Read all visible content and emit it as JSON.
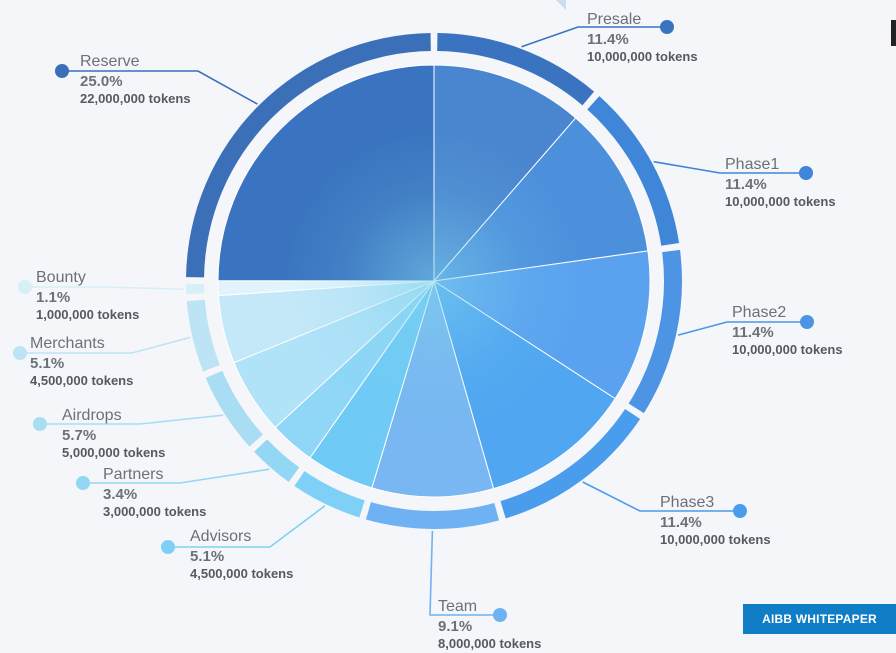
{
  "chart_data": {
    "type": "pie",
    "title": "",
    "slices": [
      {
        "name": "Presale",
        "percent": "11.4%",
        "percent_value": 11.4,
        "tokens": "10,000,000 tokens",
        "token_value": 10000000,
        "color": "#4a86cf",
        "ring_color": "#3a74c0"
      },
      {
        "name": "Phase1",
        "percent": "11.4%",
        "percent_value": 11.4,
        "tokens": "10,000,000 tokens",
        "token_value": 10000000,
        "color": "#4c90dc",
        "ring_color": "#3f86d8"
      },
      {
        "name": "Phase2",
        "percent": "11.4%",
        "percent_value": 11.4,
        "tokens": "10,000,000 tokens",
        "token_value": 10000000,
        "color": "#5aa2ef",
        "ring_color": "#4d95e4"
      },
      {
        "name": "Phase3",
        "percent": "11.4%",
        "percent_value": 11.4,
        "tokens": "10,000,000 tokens",
        "token_value": 10000000,
        "color": "#50a6f0",
        "ring_color": "#4a9cec"
      },
      {
        "name": "Team",
        "percent": "9.1%",
        "percent_value": 9.1,
        "tokens": "8,000,000 tokens",
        "token_value": 8000000,
        "color": "#78b7f1",
        "ring_color": "#6fb2f3"
      },
      {
        "name": "Advisors",
        "percent": "5.1%",
        "percent_value": 5.1,
        "tokens": "4,500,000 tokens",
        "token_value": 4500000,
        "color": "#6fcaf6",
        "ring_color": "#7fd0f6"
      },
      {
        "name": "Partners",
        "percent": "3.4%",
        "percent_value": 3.4,
        "tokens": "3,000,000 tokens",
        "token_value": 3000000,
        "color": "#8fd6f7",
        "ring_color": "#93d7f4"
      },
      {
        "name": "Airdrops",
        "percent": "5.7%",
        "percent_value": 5.7,
        "tokens": "5,000,000 tokens",
        "token_value": 5000000,
        "color": "#b0e2f8",
        "ring_color": "#a8ddf3"
      },
      {
        "name": "Merchants",
        "percent": "5.1%",
        "percent_value": 5.1,
        "tokens": "4,500,000 tokens",
        "token_value": 4500000,
        "color": "#c4e8f8",
        "ring_color": "#bde4f4"
      },
      {
        "name": "Bounty",
        "percent": "1.1%",
        "percent_value": 1.1,
        "tokens": "1,000,000 tokens",
        "token_value": 1000000,
        "color": "#e1f4fb",
        "ring_color": "#d8eff8"
      },
      {
        "name": "Reserve",
        "percent": "25.0%",
        "percent_value": 25.0,
        "tokens": "22,000,000 tokens",
        "token_value": 22000000,
        "color": "#3a74c0",
        "ring_color": "#3b6fb8"
      }
    ],
    "legend": "labels around pie"
  },
  "badge": {
    "label": "AIBB WHITEPAPER"
  }
}
